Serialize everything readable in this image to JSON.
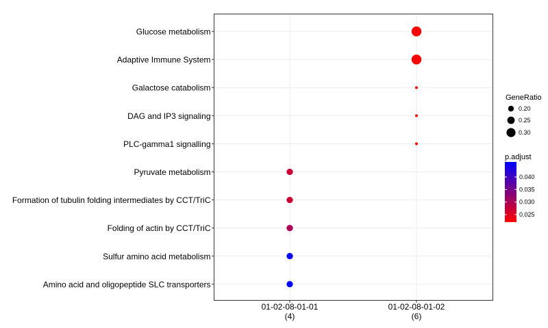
{
  "chart_data": {
    "type": "scatter",
    "title": "",
    "xlabel": "",
    "ylabel": "",
    "grid": true,
    "categories_x": [
      {
        "label": "01-02-08-01-01",
        "sublabel": "(4)"
      },
      {
        "label": "01-02-08-01-02",
        "sublabel": "(6)"
      }
    ],
    "categories_y": [
      "Glucose metabolism",
      "Adaptive Immune System",
      "Galactose catabolism",
      "DAG and IP3 signaling",
      "PLC-gamma1 signalling",
      "Pyruvate metabolism",
      "Formation of tubulin folding intermediates by CCT/TriC",
      "Folding of actin by CCT/TriC",
      "Sulfur amino acid metabolism",
      "Amino acid and oligopeptide SLC transporters"
    ],
    "points": [
      {
        "x": "01-02-08-01-02",
        "y": "Glucose metabolism",
        "gene_ratio": 0.33,
        "p_adjust": 0.022
      },
      {
        "x": "01-02-08-01-02",
        "y": "Adaptive Immune System",
        "gene_ratio": 0.33,
        "p_adjust": 0.022
      },
      {
        "x": "01-02-08-01-02",
        "y": "Galactose catabolism",
        "gene_ratio": 0.167,
        "p_adjust": 0.022
      },
      {
        "x": "01-02-08-01-02",
        "y": "DAG and IP3 signaling",
        "gene_ratio": 0.167,
        "p_adjust": 0.022
      },
      {
        "x": "01-02-08-01-02",
        "y": "PLC-gamma1 signalling",
        "gene_ratio": 0.167,
        "p_adjust": 0.022
      },
      {
        "x": "01-02-08-01-01",
        "y": "Pyruvate metabolism",
        "gene_ratio": 0.25,
        "p_adjust": 0.027
      },
      {
        "x": "01-02-08-01-01",
        "y": "Formation of tubulin folding intermediates by CCT/TriC",
        "gene_ratio": 0.25,
        "p_adjust": 0.027
      },
      {
        "x": "01-02-08-01-01",
        "y": "Folding of actin by CCT/TriC",
        "gene_ratio": 0.25,
        "p_adjust": 0.03
      },
      {
        "x": "01-02-08-01-01",
        "y": "Sulfur amino acid metabolism",
        "gene_ratio": 0.25,
        "p_adjust": 0.046
      },
      {
        "x": "01-02-08-01-01",
        "y": "Amino acid and oligopeptide SLC transporters",
        "gene_ratio": 0.25,
        "p_adjust": 0.046
      }
    ],
    "legend": {
      "placement": "right",
      "size": {
        "title": "GeneRatio",
        "entries": [
          {
            "label": "0.20",
            "value": 0.2
          },
          {
            "label": "0.25",
            "value": 0.25
          },
          {
            "label": "0.30",
            "value": 0.3
          }
        ]
      },
      "color": {
        "title": "p.adjust",
        "low_color": "#ff0000",
        "high_color": "#0000ff",
        "range": [
          0.022,
          0.046
        ],
        "ticks": [
          {
            "label": "0.025",
            "value": 0.025
          },
          {
            "label": "0.030",
            "value": 0.03
          },
          {
            "label": "0.035",
            "value": 0.035
          },
          {
            "label": "0.040",
            "value": 0.04
          }
        ]
      }
    }
  }
}
